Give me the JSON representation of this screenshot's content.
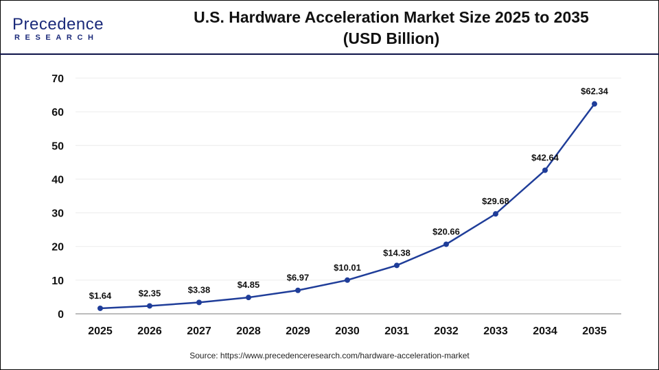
{
  "logo": {
    "main": "Precedence",
    "sub": "RESEARCH"
  },
  "title_line1": "U.S. Hardware Acceleration Market Size 2025 to 2035",
  "title_line2": "(USD Billion)",
  "source": "Source: https://www.precedenceresearch.com/hardware-acceleration-market",
  "chart_data": {
    "type": "line",
    "title": "U.S. Hardware Acceleration Market Size 2025 to 2035 (USD Billion)",
    "categories": [
      "2025",
      "2026",
      "2027",
      "2028",
      "2029",
      "2030",
      "2031",
      "2032",
      "2033",
      "2034",
      "2035"
    ],
    "values": [
      1.64,
      2.35,
      3.38,
      4.85,
      6.97,
      10.01,
      14.38,
      20.66,
      29.68,
      42.64,
      62.34
    ],
    "labels": [
      "$1.64",
      "$2.35",
      "$3.38",
      "$4.85",
      "$6.97",
      "$10.01",
      "$14.38",
      "$20.66",
      "$29.68",
      "$42.64",
      "$62.34"
    ],
    "yticks": [
      0,
      10,
      20,
      30,
      40,
      50,
      60,
      70
    ],
    "ylim": [
      0,
      70
    ],
    "grid": true,
    "color": "#1f3d99"
  }
}
